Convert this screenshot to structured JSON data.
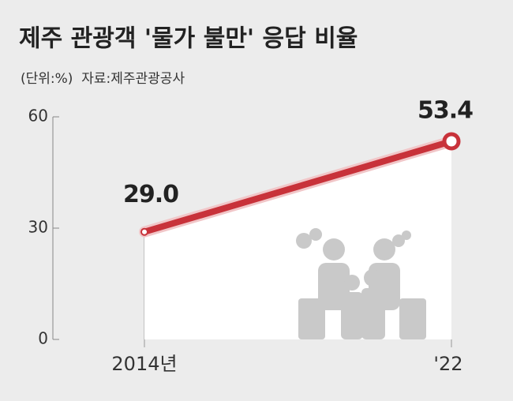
{
  "chart_data": {
    "type": "line",
    "title": "제주 관광객 '물가 불만' 응답 비율",
    "subtitle": "(단위:%)  자료:제주관광공사",
    "categories": [
      "2014년",
      "'22"
    ],
    "values": [
      29.0,
      53.4
    ],
    "value_labels": [
      "29.0",
      "53.4"
    ],
    "color": "#c8323a",
    "ylim": [
      0,
      60
    ],
    "yticks": [
      0,
      30,
      60
    ],
    "grid": false
  }
}
